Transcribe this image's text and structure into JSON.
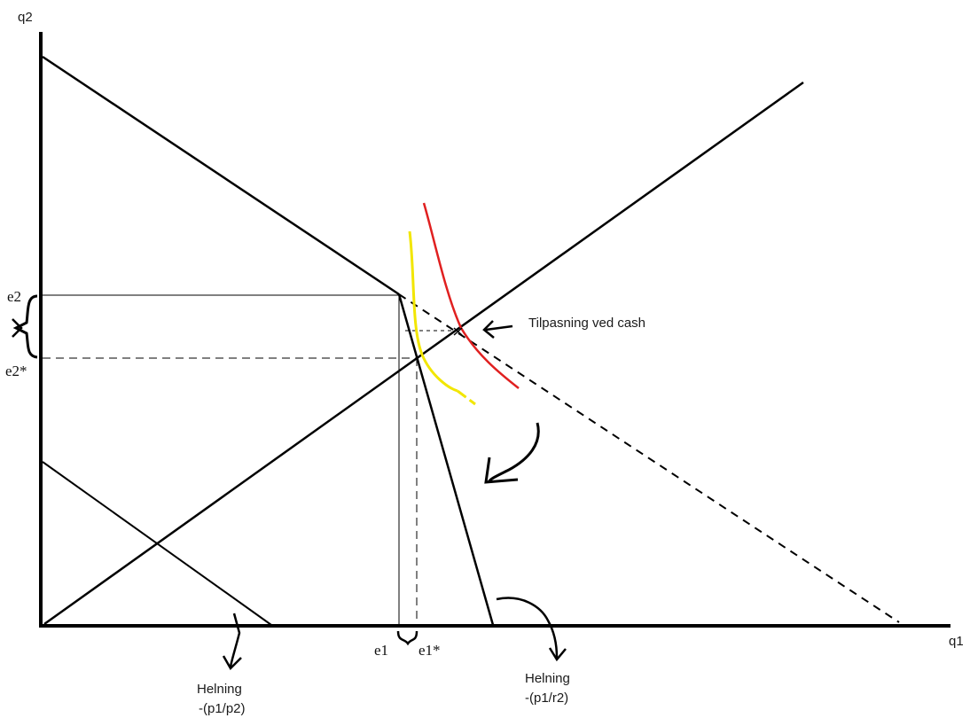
{
  "axes": {
    "x_label": "q1",
    "y_label": "q2"
  },
  "ticks": {
    "e2": "e2",
    "e2_star": "e2*",
    "e1": "e1",
    "e1_star": "e1*"
  },
  "annotations": {
    "cash_label": "Tilpasning ved cash",
    "slope_left_line1": "Helning",
    "slope_left_line2": "-(p1/p2)",
    "slope_right_line1": "Helning",
    "slope_right_line2": "-(p1/r2)"
  },
  "colors": {
    "ink": "#000000",
    "indifference_yellow": "#f2e600",
    "indifference_red": "#e02020"
  }
}
